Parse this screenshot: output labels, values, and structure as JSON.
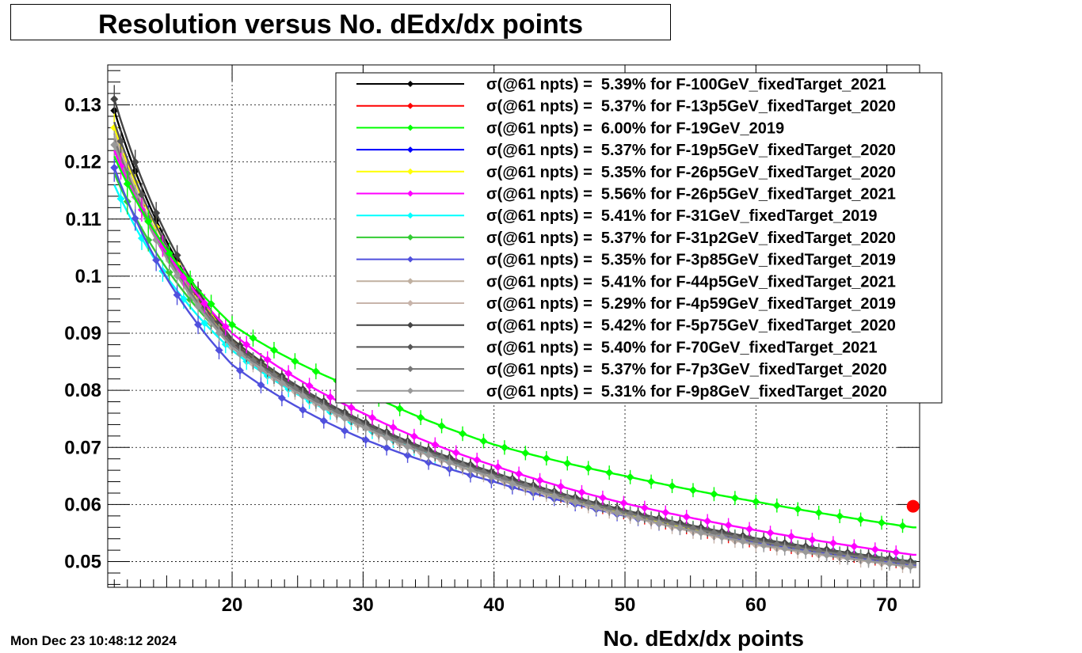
{
  "title": "Resolution versus No. dEdx/dx points",
  "timestamp": "Mon Dec 23 10:48:12 2024",
  "chart_data": {
    "type": "line",
    "title": "Resolution versus No. dEdx/dx points",
    "xlabel": "No. dEdx/dx points",
    "ylabel": "",
    "xlim": [
      10.5,
      72.5
    ],
    "ylim": [
      0.0455,
      0.137
    ],
    "x_ticks": [
      "20",
      "30",
      "40",
      "50",
      "60",
      "70"
    ],
    "y_ticks": [
      "0.05",
      "0.06",
      "0.07",
      "0.08",
      "0.09",
      "0.1",
      "0.11",
      "0.12",
      "0.13"
    ],
    "grid": true,
    "legend_position": "top-right",
    "markers": {
      "type": "diamond-with-error-bars"
    },
    "highlight_point": {
      "x": 72,
      "y": 0.0597,
      "color": "#ff0000"
    },
    "series": [
      {
        "name": "F-100GeV_fixedTarget_2021",
        "legend": "σ(@61 npts) =  5.39% for F-100GeV_fixedTarget_2021",
        "color": "#000000",
        "x": [
          11,
          20,
          30,
          40,
          50,
          60,
          72
        ],
        "values": [
          0.129,
          0.0885,
          0.0742,
          0.0653,
          0.0587,
          0.0537,
          0.0497
        ]
      },
      {
        "name": "F-13p5GeV_fixedTarget_2020",
        "legend": "σ(@61 npts) =  5.37% for F-13p5GeV_fixedTarget_2020",
        "color": "#ff0000",
        "x": [
          11,
          20,
          30,
          40,
          50,
          60,
          72
        ],
        "values": [
          0.124,
          0.0885,
          0.0742,
          0.0652,
          0.0586,
          0.0535,
          0.0497
        ]
      },
      {
        "name": "F-19GeV_2019",
        "legend": "σ(@61 npts) =  6.00% for F-19GeV_2019",
        "color": "#00ff00",
        "x": [
          11,
          20,
          30,
          40,
          50,
          60,
          72
        ],
        "values": [
          0.121,
          0.0915,
          0.0798,
          0.0705,
          0.065,
          0.0605,
          0.056
        ]
      },
      {
        "name": "F-19p5GeV_fixedTarget_2020",
        "legend": "σ(@61 npts) =  5.37% for F-19p5GeV_fixedTarget_2020",
        "color": "#0000ff",
        "x": [
          11,
          20,
          30,
          40,
          50,
          60,
          72
        ],
        "values": [
          0.125,
          0.088,
          0.074,
          0.0651,
          0.0585,
          0.0535,
          0.0496
        ]
      },
      {
        "name": "F-26p5GeV_fixedTarget_2020",
        "legend": "σ(@61 npts) =  5.35% for F-26p5GeV_fixedTarget_2020",
        "color": "#ffff00",
        "x": [
          11,
          20,
          30,
          40,
          50,
          60,
          72
        ],
        "values": [
          0.126,
          0.089,
          0.0744,
          0.0652,
          0.0584,
          0.0533,
          0.0494
        ]
      },
      {
        "name": "F-26p5GeV_fixedTarget_2021",
        "legend": "σ(@61 npts) =  5.56% for F-26p5GeV_fixedTarget_2021",
        "color": "#ff00ff",
        "x": [
          11,
          20,
          30,
          40,
          50,
          60,
          72
        ],
        "values": [
          0.122,
          0.09,
          0.076,
          0.0668,
          0.0602,
          0.0555,
          0.0512
        ]
      },
      {
        "name": "F-31GeV_fixedTarget_2019",
        "legend": "σ(@61 npts) =  5.41% for F-31GeV_fixedTarget_2019",
        "color": "#00ffff",
        "x": [
          11,
          20,
          30,
          40,
          50,
          60,
          72
        ],
        "values": [
          0.116,
          0.087,
          0.0735,
          0.0652,
          0.0589,
          0.054,
          0.05
        ]
      },
      {
        "name": "F-31p2GeV_fixedTarget_2020",
        "legend": "σ(@61 npts) =  5.37% for F-31p2GeV_fixedTarget_2020",
        "color": "#33cc33",
        "x": [
          11,
          20,
          30,
          40,
          50,
          60,
          72
        ],
        "values": [
          0.118,
          0.088,
          0.074,
          0.0652,
          0.0587,
          0.0537,
          0.0497
        ]
      },
      {
        "name": "F-3p85GeV_fixedTarget_2019",
        "legend": "σ(@61 npts) =  5.35% for F-3p85GeV_fixedTarget_2019",
        "color": "#5050dd",
        "x": [
          11,
          20,
          30,
          40,
          50,
          60,
          72
        ],
        "values": [
          0.119,
          0.0845,
          0.0715,
          0.064,
          0.058,
          0.0533,
          0.0494
        ]
      },
      {
        "name": "F-44p5GeV_fixedTarget_2021",
        "legend": "σ(@61 npts) =  5.41% for F-44p5GeV_fixedTarget_2021",
        "color": "#c0b0a0",
        "x": [
          11,
          20,
          30,
          40,
          50,
          60,
          72
        ],
        "values": [
          0.125,
          0.088,
          0.074,
          0.0653,
          0.0589,
          0.054,
          0.0499
        ]
      },
      {
        "name": "F-4p59GeV_fixedTarget_2019",
        "legend": "σ(@61 npts) =  5.29% for F-4p59GeV_fixedTarget_2019",
        "color": "#c8b4aa",
        "x": [
          11,
          20,
          30,
          40,
          50,
          60,
          72
        ],
        "values": [
          0.124,
          0.0875,
          0.0735,
          0.0646,
          0.0581,
          0.0529,
          0.049
        ]
      },
      {
        "name": "F-5p75GeV_fixedTarget_2020",
        "legend": "σ(@61 npts) =  5.42% for F-5p75GeV_fixedTarget_2020",
        "color": "#444444",
        "x": [
          11,
          20,
          30,
          40,
          50,
          60,
          72
        ],
        "values": [
          0.131,
          0.089,
          0.0746,
          0.0656,
          0.059,
          0.0541,
          0.05
        ]
      },
      {
        "name": "F-70GeV_fixedTarget_2021",
        "legend": "σ(@61 npts) =  5.40% for F-70GeV_fixedTarget_2021",
        "color": "#555555",
        "x": [
          11,
          20,
          30,
          40,
          50,
          60,
          72
        ],
        "values": [
          0.127,
          0.0885,
          0.0743,
          0.0653,
          0.0588,
          0.0539,
          0.0499
        ]
      },
      {
        "name": "F-7p3GeV_fixedTarget_2020",
        "legend": "σ(@61 npts) =  5.37% for F-7p3GeV_fixedTarget_2020",
        "color": "#777777",
        "x": [
          11,
          20,
          30,
          40,
          50,
          60,
          72
        ],
        "values": [
          0.124,
          0.088,
          0.074,
          0.0651,
          0.0586,
          0.0536,
          0.0496
        ]
      },
      {
        "name": "F-9p8GeV_fixedTarget_2020",
        "legend": "σ(@61 npts) =  5.31% for F-9p8GeV_fixedTarget_2020",
        "color": "#999999",
        "x": [
          11,
          20,
          30,
          40,
          50,
          60,
          72
        ],
        "values": [
          0.123,
          0.0875,
          0.0736,
          0.0647,
          0.0582,
          0.0531,
          0.0491
        ]
      }
    ]
  }
}
